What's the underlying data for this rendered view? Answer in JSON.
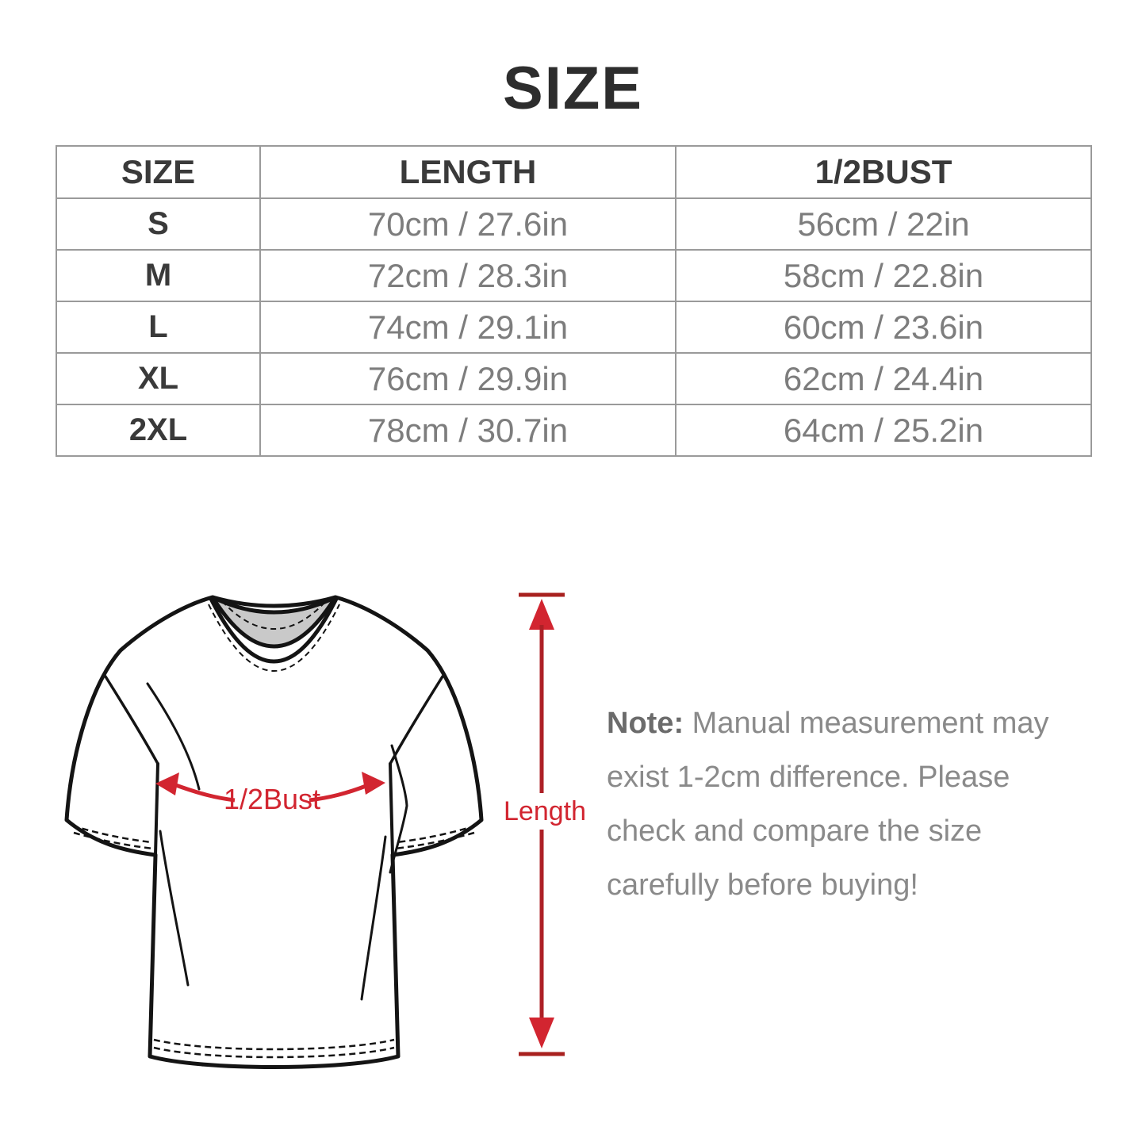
{
  "page": {
    "title": "SIZE",
    "background_color": "#ffffff"
  },
  "size_table": {
    "headers": [
      "SIZE",
      "LENGTH",
      "1/2BUST"
    ],
    "rows": [
      {
        "size": "S",
        "length": "70cm / 27.6in",
        "half_bust": "56cm / 22in"
      },
      {
        "size": "M",
        "length": "72cm / 28.3in",
        "half_bust": "58cm / 22.8in"
      },
      {
        "size": "L",
        "length": "74cm / 29.1in",
        "half_bust": "60cm / 23.6in"
      },
      {
        "size": "XL",
        "length": "76cm / 29.9in",
        "half_bust": "62cm / 24.4in"
      },
      {
        "size": "2XL",
        "length": "78cm / 30.7in",
        "half_bust": "64cm / 25.2in"
      }
    ],
    "border_color": "#9a9a9a"
  },
  "diagram": {
    "bust_label": "1/2Bust",
    "length_label": "Length",
    "colors": {
      "annotation_red": "#d22530",
      "annotation_dark_red": "#a8211f",
      "outline_black": "#141414",
      "collar_gray": "#c9c9c9"
    }
  },
  "note": {
    "label": "Note:",
    "lines": [
      "Manual measurement may",
      "exist 1-2cm difference. Please",
      "check and compare the size",
      "carefully before buying!"
    ]
  }
}
